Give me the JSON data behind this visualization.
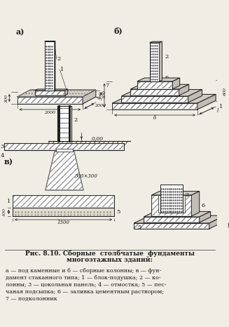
{
  "bg_color": "#f0ede4",
  "line_color": "#1a1a1a",
  "title_line1": "Рис. 8.10. Сборные  столбчатые  фундаменты",
  "title_line2": "многоэтажных зданий:",
  "caption": "а — под каменные и б — сборные колонны; в — фун-\nдамент стаканного типа; 1 — блок-подушка; 2 — ко-\nлонны; 3 — цокольная панель; 4 — отмостка; 5 — пес-\nчаная подсыпка; 6 — заливка цементным раствором;\n7 — подколонник",
  "label_a": "а)",
  "label_b": "б)",
  "label_v": "в)"
}
